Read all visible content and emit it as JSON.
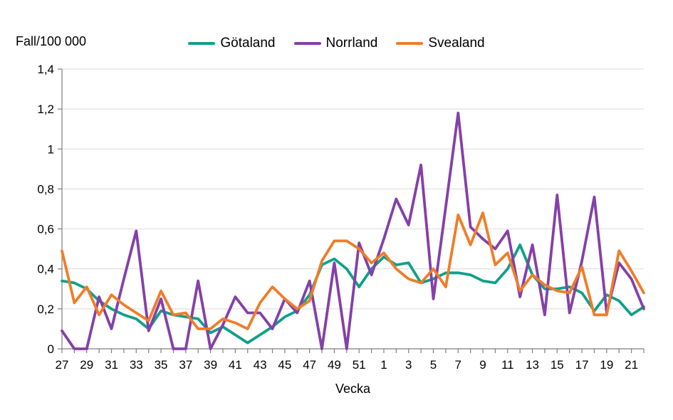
{
  "title": "Fall/100 000",
  "xlabel": "Vecka",
  "colors": {
    "gotaland": "#11A089",
    "norrland": "#8440A8",
    "svealand": "#EF7D29",
    "gridline": "#D9D9D9",
    "axis": "#7F7F7F",
    "background": "#FFFFFF"
  },
  "legend": {
    "items": [
      {
        "label": "Götaland",
        "color": "#11A089"
      },
      {
        "label": "Norrland",
        "color": "#8440A8"
      },
      {
        "label": "Svealand",
        "color": "#EF7D29"
      }
    ]
  },
  "chart_data": {
    "type": "line",
    "title": "Fall/100 000",
    "xlabel": "Vecka",
    "ylabel": "Fall/100 000",
    "ylim": [
      0,
      1.4
    ],
    "ytick_values": [
      0,
      0.2,
      0.4,
      0.6,
      0.8,
      1.0,
      1.2,
      1.4
    ],
    "ytick_labels": [
      "0",
      "0,2",
      "0,4",
      "0,6",
      "0,8",
      "1",
      "1,2",
      "1,4"
    ],
    "grid": "horizontal",
    "legend_position": "top",
    "categories": [
      "27",
      "28",
      "29",
      "30",
      "31",
      "32",
      "33",
      "34",
      "35",
      "36",
      "37",
      "38",
      "39",
      "40",
      "41",
      "42",
      "43",
      "44",
      "45",
      "46",
      "47",
      "48",
      "49",
      "50",
      "51",
      "52",
      "1",
      "2",
      "3",
      "4",
      "5",
      "6",
      "7",
      "8",
      "9",
      "10",
      "11",
      "12",
      "13",
      "14",
      "15",
      "16",
      "17",
      "18",
      "19",
      "20",
      "21",
      "22"
    ],
    "label_every": 2,
    "series": [
      {
        "name": "Götaland",
        "color": "#11A089",
        "values": [
          0.34,
          0.33,
          0.3,
          0.24,
          0.2,
          0.17,
          0.15,
          0.1,
          0.19,
          0.17,
          0.16,
          0.15,
          0.08,
          0.11,
          0.07,
          0.03,
          0.07,
          0.11,
          0.16,
          0.19,
          0.27,
          0.42,
          0.45,
          0.4,
          0.31,
          0.4,
          0.46,
          0.42,
          0.43,
          0.33,
          0.35,
          0.38,
          0.38,
          0.37,
          0.34,
          0.33,
          0.4,
          0.52,
          0.37,
          0.3,
          0.3,
          0.31,
          0.28,
          0.19,
          0.27,
          0.24,
          0.17,
          0.21
        ]
      },
      {
        "name": "Norrland",
        "color": "#8440A8",
        "values": [
          0.09,
          0.0,
          0.0,
          0.26,
          0.1,
          0.35,
          0.59,
          0.09,
          0.25,
          0.0,
          0.0,
          0.34,
          0.0,
          0.12,
          0.26,
          0.18,
          0.18,
          0.1,
          0.25,
          0.18,
          0.34,
          0.0,
          0.43,
          0.0,
          0.53,
          0.37,
          0.55,
          0.75,
          0.62,
          0.92,
          0.25,
          0.71,
          1.18,
          0.61,
          0.55,
          0.5,
          0.59,
          0.26,
          0.52,
          0.17,
          0.77,
          0.18,
          0.44,
          0.76,
          0.18,
          0.43,
          0.35,
          0.2
        ]
      },
      {
        "name": "Svealand",
        "color": "#EF7D29",
        "values": [
          0.49,
          0.23,
          0.31,
          0.17,
          0.27,
          0.22,
          0.18,
          0.14,
          0.29,
          0.17,
          0.18,
          0.1,
          0.1,
          0.15,
          0.13,
          0.1,
          0.23,
          0.31,
          0.25,
          0.2,
          0.24,
          0.44,
          0.54,
          0.54,
          0.5,
          0.43,
          0.48,
          0.4,
          0.35,
          0.33,
          0.4,
          0.31,
          0.67,
          0.52,
          0.68,
          0.42,
          0.48,
          0.29,
          0.37,
          0.32,
          0.29,
          0.28,
          0.41,
          0.17,
          0.17,
          0.49,
          0.39,
          0.28
        ]
      }
    ]
  }
}
